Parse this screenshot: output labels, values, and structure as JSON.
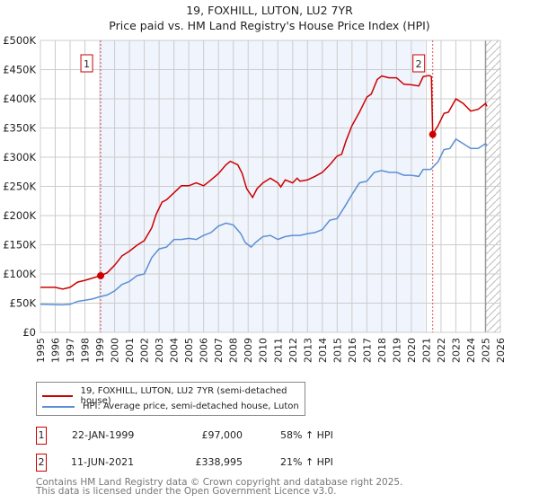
{
  "title": "19, FOXHILL, LUTON, LU2 7YR",
  "subtitle": "Price paid vs. HM Land Registry's House Price Index (HPI)",
  "legend": [
    {
      "label": "19, FOXHILL, LUTON, LU2 7YR (semi-detached house)",
      "color": "#cc0000"
    },
    {
      "label": "HPI: Average price, semi-detached house, Luton",
      "color": "#5b8fd4"
    }
  ],
  "sales": [
    {
      "num": "1",
      "date": "22-JAN-1999",
      "price": "£97,000",
      "hpi": "58% ↑ HPI",
      "year": 1999.06,
      "value": 97000
    },
    {
      "num": "2",
      "date": "11-JUN-2021",
      "price": "£338,995",
      "hpi": "21% ↑ HPI",
      "year": 2021.44,
      "value": 338995
    }
  ],
  "footer": [
    "Contains HM Land Registry data © Crown copyright and database right 2025.",
    "This data is licensed under the Open Government Licence v3.0."
  ],
  "chart_data": {
    "type": "line",
    "title": "19, FOXHILL, LUTON, LU2 7YR",
    "xlim": [
      1995,
      2026
    ],
    "ylim": [
      0,
      500000
    ],
    "xticks": [
      "1995",
      "1996",
      "1997",
      "1998",
      "1999",
      "2000",
      "2001",
      "2002",
      "2003",
      "2004",
      "2005",
      "2006",
      "2007",
      "2008",
      "2009",
      "2010",
      "2011",
      "2012",
      "2013",
      "2014",
      "2015",
      "2016",
      "2017",
      "2018",
      "2019",
      "2020",
      "2021",
      "2022",
      "2023",
      "2024",
      "2025",
      "2026"
    ],
    "yticks": [
      "£0",
      "£50K",
      "£100K",
      "£150K",
      "£200K",
      "£250K",
      "£300K",
      "£350K",
      "£400K",
      "£450K",
      "£500K"
    ],
    "shaded_range": [
      1999.06,
      2020.9
    ],
    "hatched_from": 2025.0,
    "series": [
      {
        "name": "19, FOXHILL, LUTON, LU2 7YR (semi-detached house)",
        "color": "#cc0000",
        "x": [
          1995,
          1996,
          1996.5,
          1997,
          1997.5,
          1998,
          1998.5,
          1999.06,
          1999.5,
          2000,
          2000.5,
          2001,
          2001.5,
          2002,
          2002.5,
          2002.8,
          2003.2,
          2003.5,
          2004,
          2004.5,
          2005,
          2005.5,
          2006,
          2006.5,
          2007,
          2007.5,
          2007.8,
          2008.3,
          2008.6,
          2008.9,
          2009.3,
          2009.6,
          2010,
          2010.5,
          2011,
          2011.2,
          2011.5,
          2012,
          2012.3,
          2012.5,
          2013,
          2013.5,
          2014,
          2014.5,
          2015,
          2015.3,
          2015.6,
          2016,
          2016.5,
          2017,
          2017.3,
          2017.7,
          2018,
          2018.5,
          2019,
          2019.5,
          2020,
          2020.5,
          2020.8,
          2021.2,
          2021.35,
          2021.44,
          2021.8,
          2022.2,
          2022.5,
          2023,
          2023.5,
          2024,
          2024.5,
          2025,
          2025.1
        ],
        "y": [
          77,
          77,
          74,
          77,
          86,
          89,
          93,
          97,
          102,
          115,
          131,
          139,
          149,
          157,
          179,
          202,
          223,
          227,
          239,
          251,
          251,
          256,
          251,
          261,
          272,
          287,
          293,
          287,
          272,
          246,
          231,
          246,
          256,
          264,
          256,
          249,
          261,
          256,
          264,
          259,
          261,
          267,
          274,
          287,
          302,
          305,
          328,
          354,
          377,
          403,
          408,
          433,
          439,
          436,
          436,
          425,
          424,
          422,
          438,
          440,
          438,
          339,
          354,
          375,
          377,
          400,
          392,
          379,
          382,
          392,
          387
        ]
      },
      {
        "name": "HPI: Average price, semi-detached house, Luton",
        "color": "#5b8fd4",
        "x": [
          1995,
          1996.5,
          1997,
          1997.5,
          1998.5,
          1999,
          1999.5,
          2000,
          2000.5,
          2001,
          2001.5,
          2002,
          2002.5,
          2003,
          2003.5,
          2004,
          2004.5,
          2005,
          2005.5,
          2006,
          2006.5,
          2007,
          2007.5,
          2008,
          2008.5,
          2008.8,
          2009.2,
          2009.5,
          2010,
          2010.5,
          2011,
          2011.5,
          2012,
          2012.5,
          2013,
          2013.5,
          2014,
          2014.5,
          2015,
          2015.5,
          2016,
          2016.5,
          2017,
          2017.5,
          2018,
          2018.5,
          2019,
          2019.5,
          2020,
          2020.5,
          2020.8,
          2021.3,
          2021.8,
          2022.2,
          2022.6,
          2023,
          2023.5,
          2024,
          2024.5,
          2025,
          2025.1
        ],
        "y": [
          48,
          47,
          48,
          53,
          57,
          61,
          64,
          71,
          82,
          87,
          97,
          100,
          128,
          143,
          146,
          159,
          159,
          161,
          159,
          166,
          171,
          182,
          187,
          184,
          169,
          154,
          146,
          154,
          164,
          166,
          159,
          164,
          166,
          166,
          169,
          171,
          176,
          192,
          195,
          215,
          236,
          256,
          259,
          274,
          277,
          274,
          274,
          269,
          269,
          267,
          279,
          279,
          292,
          313,
          315,
          331,
          323,
          315,
          315,
          323,
          320
        ]
      }
    ],
    "y_units": "thousands GBP"
  }
}
